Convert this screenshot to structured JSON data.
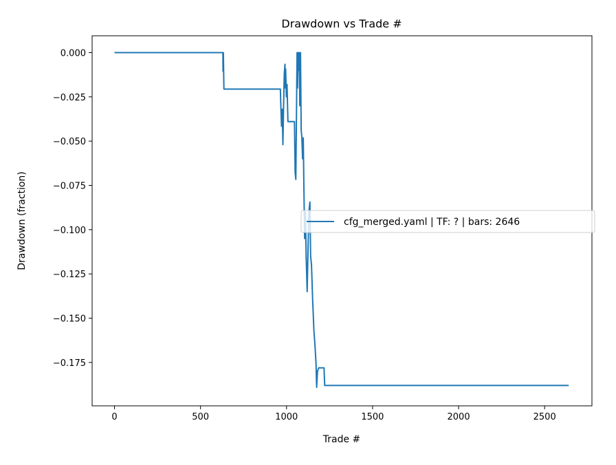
{
  "chart_data": {
    "type": "line",
    "title": "Drawdown vs Trade #",
    "xlabel": "Trade #",
    "ylabel": "Drawdown (fraction)",
    "xlim": [
      -130,
      2775
    ],
    "ylim": [
      -0.1995,
      0.0095
    ],
    "xticks": [
      0,
      500,
      1000,
      1500,
      2000,
      2500
    ],
    "xtick_labels": [
      "0",
      "500",
      "1000",
      "1500",
      "2000",
      "2500"
    ],
    "yticks": [
      0.0,
      -0.025,
      -0.05,
      -0.075,
      -0.1,
      -0.125,
      -0.15,
      -0.175
    ],
    "ytick_labels": [
      "0.000",
      "−0.025",
      "−0.050",
      "−0.075",
      "−0.100",
      "−0.125",
      "−0.150",
      "−0.175"
    ],
    "grid": false,
    "legend_placement": "center-right",
    "series": [
      {
        "name": "cfg_merged.yaml | TF: ? | bars: 2646",
        "color": "#1f77b4",
        "points": [
          [
            0,
            0
          ],
          [
            630,
            0
          ],
          [
            631,
            -0.0105
          ],
          [
            633,
            0
          ],
          [
            636,
            -0.0206
          ],
          [
            964,
            -0.0206
          ],
          [
            967,
            -0.03
          ],
          [
            971,
            -0.0416
          ],
          [
            975,
            -0.032
          ],
          [
            979,
            -0.052
          ],
          [
            983,
            -0.03
          ],
          [
            987,
            -0.012
          ],
          [
            991,
            -0.0066
          ],
          [
            993,
            -0.02
          ],
          [
            995,
            -0.0093
          ],
          [
            999,
            -0.025
          ],
          [
            1003,
            -0.018
          ],
          [
            1008,
            -0.039
          ],
          [
            1046,
            -0.039
          ],
          [
            1050,
            -0.0677
          ],
          [
            1054,
            -0.0716
          ],
          [
            1057,
            -0.04
          ],
          [
            1061,
            0
          ],
          [
            1064,
            -0.02
          ],
          [
            1067,
            0
          ],
          [
            1070,
            -0.01
          ],
          [
            1074,
            0
          ],
          [
            1077,
            -0.03
          ],
          [
            1081,
            0
          ],
          [
            1085,
            -0.044
          ],
          [
            1089,
            -0.048
          ],
          [
            1093,
            -0.06
          ],
          [
            1097,
            -0.0482
          ],
          [
            1101,
            -0.078
          ],
          [
            1105,
            -0.105
          ],
          [
            1110,
            -0.09
          ],
          [
            1114,
            -0.115
          ],
          [
            1120,
            -0.135
          ],
          [
            1125,
            -0.11
          ],
          [
            1130,
            -0.09
          ],
          [
            1136,
            -0.0844
          ],
          [
            1140,
            -0.115
          ],
          [
            1145,
            -0.12
          ],
          [
            1152,
            -0.14
          ],
          [
            1159,
            -0.157
          ],
          [
            1165,
            -0.165
          ],
          [
            1171,
            -0.175
          ],
          [
            1175,
            -0.189
          ],
          [
            1180,
            -0.18
          ],
          [
            1187,
            -0.178
          ],
          [
            1218,
            -0.178
          ],
          [
            1222,
            -0.188
          ],
          [
            2640,
            -0.188
          ]
        ]
      }
    ]
  }
}
